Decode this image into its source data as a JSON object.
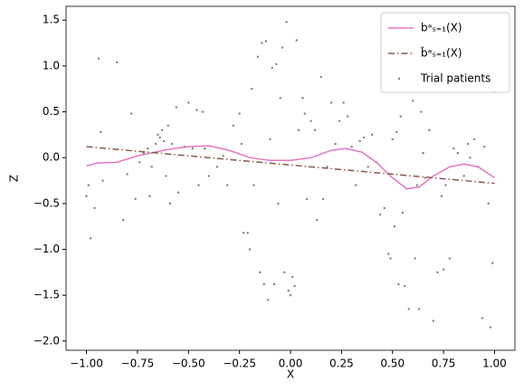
{
  "chart_data": {
    "type": "line",
    "xlabel": "X",
    "ylabel": "Z",
    "xlim": [
      -1.1,
      1.1
    ],
    "ylim": [
      -2.1,
      1.65
    ],
    "xticks": [
      {
        "value": -1.0,
        "label": "−1.00"
      },
      {
        "value": -0.75,
        "label": "−0.75"
      },
      {
        "value": -0.5,
        "label": "−0.50"
      },
      {
        "value": -0.25,
        "label": "−0.25"
      },
      {
        "value": 0.0,
        "label": "0.00"
      },
      {
        "value": 0.25,
        "label": "0.25"
      },
      {
        "value": 0.5,
        "label": "0.50"
      },
      {
        "value": 0.75,
        "label": "0.75"
      },
      {
        "value": 1.0,
        "label": "1.00"
      }
    ],
    "yticks": [
      {
        "value": -2.0,
        "label": "−2.0"
      },
      {
        "value": -1.5,
        "label": "−1.5"
      },
      {
        "value": -1.0,
        "label": "−1.0"
      },
      {
        "value": -0.5,
        "label": "−0.5"
      },
      {
        "value": 0.0,
        "label": "0.0"
      },
      0.5,
      {
        "value": 1.0,
        "label": "1.0"
      },
      1.5
    ],
    "grid": false,
    "legend": "upper right",
    "series": [
      {
        "name": "bᵃₛ₌₁(X)",
        "color": "#e377c2",
        "type": "line",
        "style": "solid",
        "x": [
          -1.0,
          -0.95,
          -0.85,
          -0.75,
          -0.6,
          -0.5,
          -0.4,
          -0.3,
          -0.2,
          -0.1,
          0.0,
          0.1,
          0.2,
          0.27,
          0.35,
          0.42,
          0.5,
          0.57,
          0.63,
          0.7,
          0.78,
          0.85,
          0.92,
          1.0
        ],
        "values": [
          -0.09,
          -0.06,
          -0.05,
          0.02,
          0.09,
          0.12,
          0.13,
          0.08,
          0.0,
          -0.03,
          -0.03,
          0.0,
          0.08,
          0.1,
          0.06,
          -0.05,
          -0.22,
          -0.34,
          -0.32,
          -0.2,
          -0.1,
          -0.07,
          -0.1,
          -0.22
        ]
      },
      {
        "name": "b̂ᵃₛ₌₁(X)",
        "color": "#8c564b",
        "type": "line",
        "style": "dashdot",
        "x": [
          -1.0,
          1.0
        ],
        "values": [
          0.12,
          -0.28
        ]
      },
      {
        "name": "Trial patients",
        "color": "#7f7f7f",
        "type": "scatter",
        "x": [
          -1.0,
          -0.99,
          -0.98,
          -0.96,
          -0.94,
          -0.93,
          -0.92,
          -0.85,
          -0.82,
          -0.8,
          -0.78,
          -0.76,
          -0.74,
          -0.72,
          -0.7,
          -0.69,
          -0.68,
          -0.66,
          -0.65,
          -0.64,
          -0.63,
          -0.62,
          -0.61,
          -0.6,
          -0.59,
          -0.58,
          -0.56,
          -0.55,
          -0.52,
          -0.5,
          -0.48,
          -0.46,
          -0.45,
          -0.43,
          -0.42,
          -0.4,
          -0.36,
          -0.33,
          -0.31,
          -0.28,
          -0.25,
          -0.24,
          -0.23,
          -0.21,
          -0.2,
          -0.19,
          -0.18,
          -0.16,
          -0.15,
          -0.14,
          -0.13,
          -0.12,
          -0.11,
          -0.1,
          -0.09,
          -0.08,
          -0.07,
          -0.06,
          -0.05,
          -0.04,
          -0.03,
          -0.02,
          -0.01,
          0.0,
          0.01,
          0.02,
          0.03,
          0.04,
          0.06,
          0.07,
          0.08,
          0.1,
          0.12,
          0.13,
          0.15,
          0.16,
          0.18,
          0.2,
          0.22,
          0.24,
          0.26,
          0.28,
          0.3,
          0.32,
          0.34,
          0.36,
          0.38,
          0.4,
          0.42,
          0.44,
          0.46,
          0.48,
          0.49,
          0.5,
          0.51,
          0.52,
          0.53,
          0.54,
          0.55,
          0.56,
          0.58,
          0.6,
          0.61,
          0.62,
          0.63,
          0.64,
          0.65,
          0.66,
          0.68,
          0.7,
          0.72,
          0.74,
          0.75,
          0.76,
          0.78,
          0.8,
          0.82,
          0.85,
          0.87,
          0.88,
          0.9,
          0.92,
          0.94,
          0.95,
          0.97,
          0.98,
          0.99,
          1.0
        ],
        "values": [
          -0.42,
          -0.3,
          -0.88,
          -0.55,
          1.08,
          0.28,
          -0.25,
          1.04,
          -0.68,
          -0.18,
          0.48,
          -0.45,
          -0.05,
          0.05,
          0.1,
          -0.42,
          -0.1,
          0.15,
          0.25,
          0.22,
          0.3,
          0.18,
          -0.2,
          0.35,
          -0.5,
          0.15,
          0.55,
          -0.38,
          0.12,
          0.6,
          0.1,
          0.52,
          -0.3,
          0.5,
          0.1,
          -0.2,
          -0.1,
          0.02,
          -0.3,
          0.35,
          0.48,
          0.15,
          -0.82,
          -0.82,
          -1.0,
          0.75,
          -0.3,
          1.1,
          -1.25,
          1.25,
          -1.38,
          1.27,
          -1.55,
          0.2,
          0.98,
          -1.38,
          1.02,
          -0.5,
          0.65,
          1.2,
          -1.25,
          1.48,
          -1.45,
          -1.5,
          -1.3,
          -1.4,
          1.28,
          0.3,
          0.65,
          0.48,
          -0.45,
          0.4,
          0.3,
          -0.68,
          0.88,
          -0.45,
          -0.1,
          0.6,
          0.15,
          0.4,
          0.6,
          0.45,
          0.12,
          -0.3,
          0.18,
          0.22,
          -0.1,
          0.25,
          -0.05,
          -0.62,
          -0.55,
          -1.05,
          -1.1,
          0.2,
          -0.75,
          0.28,
          -1.38,
          0.45,
          -0.6,
          -1.4,
          -1.65,
          0.62,
          -1.1,
          -0.3,
          -1.65,
          0.5,
          0.05,
          -0.22,
          0.3,
          -1.78,
          -1.25,
          -0.42,
          -1.22,
          -0.3,
          -1.1,
          0.1,
          0.05,
          -0.2,
          0.15,
          0.0,
          0.2,
          -0.1,
          -1.75,
          0.12,
          -0.5,
          -1.85,
          -1.15,
          0.72
        ]
      }
    ]
  }
}
